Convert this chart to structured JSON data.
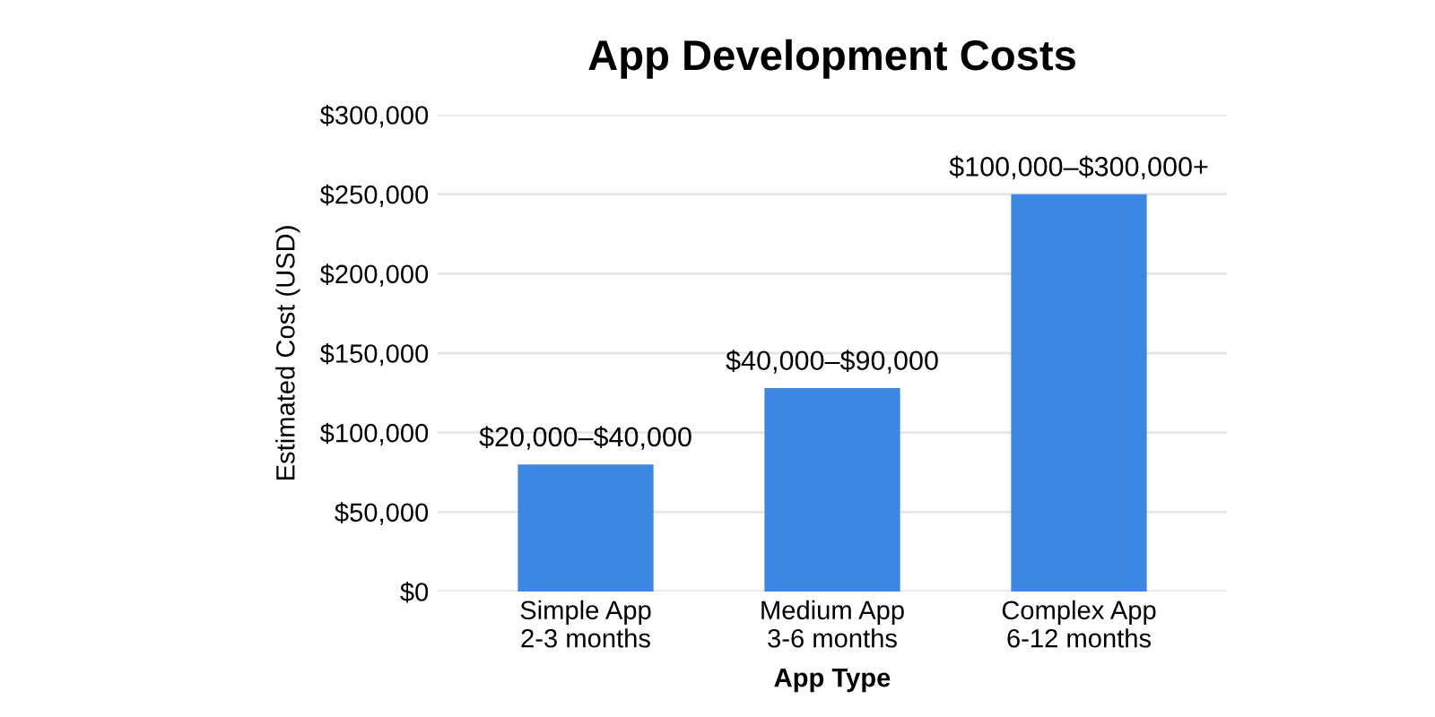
{
  "chart_data": {
    "type": "bar",
    "title": "App Development Costs",
    "xlabel": "App Type",
    "ylabel": "Estimated Cost (USD)",
    "categories": [
      "Simple App\n2-3 months",
      "Medium App\n3-6 months",
      "Complex App\n6-12 months"
    ],
    "values": [
      80000,
      128000,
      250000
    ],
    "value_labels": [
      "$20,000–$40,000",
      "$40,000–$90,000",
      "$100,000–$300,000+"
    ],
    "color": "#3b87e3",
    "ylim": [
      0,
      300000
    ],
    "yticks": [
      {
        "value": 0,
        "label": "$0"
      },
      {
        "value": 50000,
        "label": "$50,000"
      },
      {
        "value": 100000,
        "label": "$100,000"
      },
      {
        "value": 150000,
        "label": "$150,000"
      },
      {
        "value": 200000,
        "label": "$200,000"
      },
      {
        "value": 250000,
        "label": "$250,000"
      },
      {
        "value": 300000,
        "label": "$300,000"
      }
    ],
    "grid": "y"
  }
}
